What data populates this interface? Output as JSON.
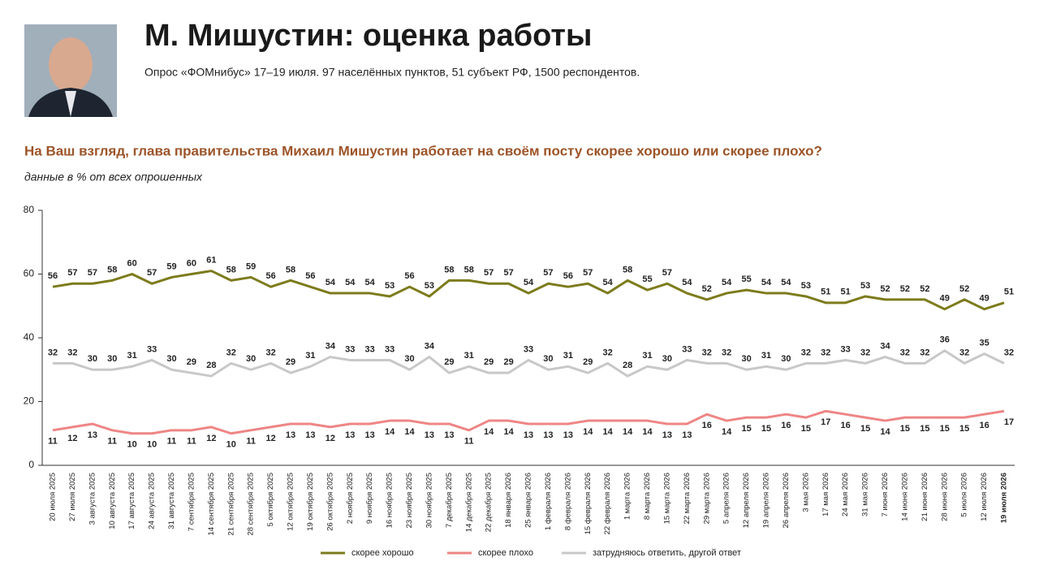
{
  "header": {
    "title": "М. Мишустин: оценка работы",
    "subtitle": "Опрос «ФОМнибус» 17–19 июля. 97 населённых пунктов, 51 субъект РФ, 1500 респондентов."
  },
  "chart_data": {
    "type": "line",
    "title": "На Ваш взгляд, глава правительства Михаил Мишустин работает на своём посту скорее хорошо или скорее плохо?",
    "subtitle": "данные в % от всех опрошенных",
    "categories": [
      "20 июля 2025",
      "27 июля 2025",
      "3 августа 2025",
      "10 августа 2025",
      "17 августа 2025",
      "24 августа 2025",
      "31 августа 2025",
      "7 сентября 2025",
      "14 сентября 2025",
      "21 сентября 2025",
      "28 сентября 2025",
      "5 октября 2025",
      "12 октября 2025",
      "19 октября 2025",
      "26 октября 2025",
      "2 ноября 2025",
      "9 ноября 2025",
      "16 ноября 2025",
      "23 ноября 2025",
      "30 ноября 2025",
      "7 декабря 2025",
      "14 декабря 2025",
      "22 декабря 2025",
      "18 января 2026",
      "25 января 2026",
      "1 февраля 2026",
      "8 февраля 2026",
      "15 февраля 2026",
      "22 февраля 2026",
      "1 марта 2026",
      "8 марта 2026",
      "15 марта 2026",
      "22 марта 2026",
      "29 марта 2026",
      "5 апреля 2026",
      "12 апреля 2026",
      "19 апреля 2026",
      "26 апреля 2026",
      "3 мая 2026",
      "17 мая 2026",
      "24 мая 2026",
      "31 мая 2026",
      "7 июня 2026",
      "14 июня 2026",
      "21 июня 2026",
      "28 июня 2026",
      "5 июля 2026",
      "12 июля 2026",
      "19 июля 2026"
    ],
    "series": [
      {
        "name": "скорее хорошо",
        "color": "#7d7b1c",
        "values": [
          56,
          57,
          57,
          58,
          60,
          57,
          59,
          60,
          61,
          58,
          59,
          56,
          58,
          56,
          54,
          54,
          54,
          53,
          56,
          53,
          58,
          58,
          57,
          57,
          54,
          57,
          56,
          57,
          54,
          58,
          55,
          57,
          54,
          52,
          54,
          55,
          54,
          54,
          53,
          51,
          51,
          53,
          52,
          52,
          52,
          49,
          52,
          49,
          51
        ]
      },
      {
        "name": "скорее плохо",
        "color": "#ee8585",
        "values": [
          11,
          12,
          13,
          11,
          10,
          10,
          11,
          11,
          12,
          10,
          11,
          12,
          13,
          13,
          12,
          13,
          13,
          14,
          14,
          13,
          13,
          11,
          14,
          14,
          13,
          13,
          13,
          14,
          14,
          14,
          14,
          13,
          13,
          16,
          14,
          15,
          15,
          16,
          15,
          17,
          16,
          15,
          14,
          15,
          15,
          15,
          15,
          16,
          17
        ]
      },
      {
        "name": "затрудняюсь ответить, другой ответ",
        "color": "#c8c8c8",
        "values": [
          32,
          32,
          30,
          30,
          31,
          33,
          30,
          29,
          28,
          32,
          30,
          32,
          29,
          31,
          34,
          33,
          33,
          33,
          30,
          34,
          29,
          31,
          29,
          29,
          33,
          30,
          31,
          29,
          32,
          28,
          31,
          30,
          33,
          32,
          32,
          30,
          31,
          30,
          32,
          32,
          33,
          32,
          34,
          32,
          32,
          36,
          32,
          35,
          32
        ]
      }
    ],
    "ylim": [
      0,
      80
    ],
    "yticks": [
      0,
      20,
      40,
      60,
      80
    ],
    "grid": false
  }
}
